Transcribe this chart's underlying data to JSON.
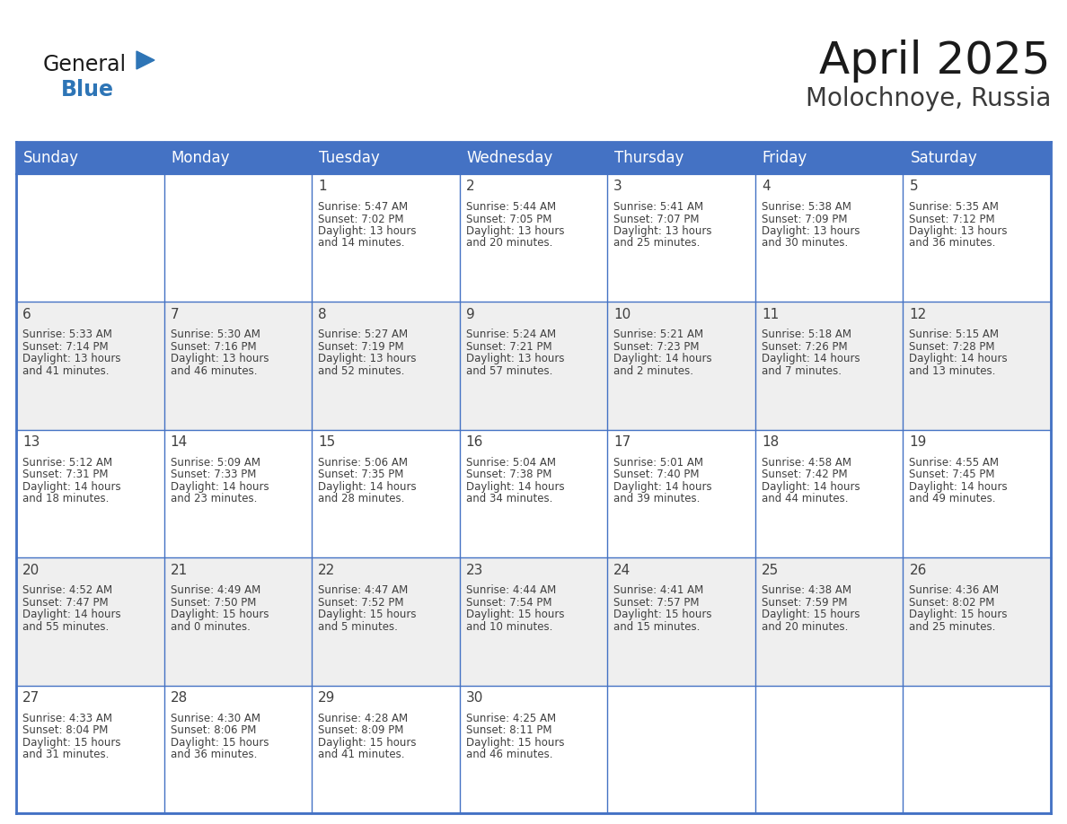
{
  "title": "April 2025",
  "subtitle": "Molochnoye, Russia",
  "header_bg_color": "#4472C4",
  "header_text_color": "#FFFFFF",
  "border_color": "#4472C4",
  "text_color": "#404040",
  "day_headers": [
    "Sunday",
    "Monday",
    "Tuesday",
    "Wednesday",
    "Thursday",
    "Friday",
    "Saturday"
  ],
  "title_fontsize": 36,
  "subtitle_fontsize": 20,
  "header_fontsize": 12,
  "day_num_fontsize": 11,
  "cell_text_fontsize": 8.5,
  "weeks": [
    [
      {
        "day": 0,
        "data": null
      },
      {
        "day": 0,
        "data": null
      },
      {
        "day": 1,
        "data": {
          "sunrise": "5:47 AM",
          "sunset": "7:02 PM",
          "daylight": "13 hours",
          "daylight2": "and 14 minutes."
        }
      },
      {
        "day": 2,
        "data": {
          "sunrise": "5:44 AM",
          "sunset": "7:05 PM",
          "daylight": "13 hours",
          "daylight2": "and 20 minutes."
        }
      },
      {
        "day": 3,
        "data": {
          "sunrise": "5:41 AM",
          "sunset": "7:07 PM",
          "daylight": "13 hours",
          "daylight2": "and 25 minutes."
        }
      },
      {
        "day": 4,
        "data": {
          "sunrise": "5:38 AM",
          "sunset": "7:09 PM",
          "daylight": "13 hours",
          "daylight2": "and 30 minutes."
        }
      },
      {
        "day": 5,
        "data": {
          "sunrise": "5:35 AM",
          "sunset": "7:12 PM",
          "daylight": "13 hours",
          "daylight2": "and 36 minutes."
        }
      }
    ],
    [
      {
        "day": 6,
        "data": {
          "sunrise": "5:33 AM",
          "sunset": "7:14 PM",
          "daylight": "13 hours",
          "daylight2": "and 41 minutes."
        }
      },
      {
        "day": 7,
        "data": {
          "sunrise": "5:30 AM",
          "sunset": "7:16 PM",
          "daylight": "13 hours",
          "daylight2": "and 46 minutes."
        }
      },
      {
        "day": 8,
        "data": {
          "sunrise": "5:27 AM",
          "sunset": "7:19 PM",
          "daylight": "13 hours",
          "daylight2": "and 52 minutes."
        }
      },
      {
        "day": 9,
        "data": {
          "sunrise": "5:24 AM",
          "sunset": "7:21 PM",
          "daylight": "13 hours",
          "daylight2": "and 57 minutes."
        }
      },
      {
        "day": 10,
        "data": {
          "sunrise": "5:21 AM",
          "sunset": "7:23 PM",
          "daylight": "14 hours",
          "daylight2": "and 2 minutes."
        }
      },
      {
        "day": 11,
        "data": {
          "sunrise": "5:18 AM",
          "sunset": "7:26 PM",
          "daylight": "14 hours",
          "daylight2": "and 7 minutes."
        }
      },
      {
        "day": 12,
        "data": {
          "sunrise": "5:15 AM",
          "sunset": "7:28 PM",
          "daylight": "14 hours",
          "daylight2": "and 13 minutes."
        }
      }
    ],
    [
      {
        "day": 13,
        "data": {
          "sunrise": "5:12 AM",
          "sunset": "7:31 PM",
          "daylight": "14 hours",
          "daylight2": "and 18 minutes."
        }
      },
      {
        "day": 14,
        "data": {
          "sunrise": "5:09 AM",
          "sunset": "7:33 PM",
          "daylight": "14 hours",
          "daylight2": "and 23 minutes."
        }
      },
      {
        "day": 15,
        "data": {
          "sunrise": "5:06 AM",
          "sunset": "7:35 PM",
          "daylight": "14 hours",
          "daylight2": "and 28 minutes."
        }
      },
      {
        "day": 16,
        "data": {
          "sunrise": "5:04 AM",
          "sunset": "7:38 PM",
          "daylight": "14 hours",
          "daylight2": "and 34 minutes."
        }
      },
      {
        "day": 17,
        "data": {
          "sunrise": "5:01 AM",
          "sunset": "7:40 PM",
          "daylight": "14 hours",
          "daylight2": "and 39 minutes."
        }
      },
      {
        "day": 18,
        "data": {
          "sunrise": "4:58 AM",
          "sunset": "7:42 PM",
          "daylight": "14 hours",
          "daylight2": "and 44 minutes."
        }
      },
      {
        "day": 19,
        "data": {
          "sunrise": "4:55 AM",
          "sunset": "7:45 PM",
          "daylight": "14 hours",
          "daylight2": "and 49 minutes."
        }
      }
    ],
    [
      {
        "day": 20,
        "data": {
          "sunrise": "4:52 AM",
          "sunset": "7:47 PM",
          "daylight": "14 hours",
          "daylight2": "and 55 minutes."
        }
      },
      {
        "day": 21,
        "data": {
          "sunrise": "4:49 AM",
          "sunset": "7:50 PM",
          "daylight": "15 hours",
          "daylight2": "and 0 minutes."
        }
      },
      {
        "day": 22,
        "data": {
          "sunrise": "4:47 AM",
          "sunset": "7:52 PM",
          "daylight": "15 hours",
          "daylight2": "and 5 minutes."
        }
      },
      {
        "day": 23,
        "data": {
          "sunrise": "4:44 AM",
          "sunset": "7:54 PM",
          "daylight": "15 hours",
          "daylight2": "and 10 minutes."
        }
      },
      {
        "day": 24,
        "data": {
          "sunrise": "4:41 AM",
          "sunset": "7:57 PM",
          "daylight": "15 hours",
          "daylight2": "and 15 minutes."
        }
      },
      {
        "day": 25,
        "data": {
          "sunrise": "4:38 AM",
          "sunset": "7:59 PM",
          "daylight": "15 hours",
          "daylight2": "and 20 minutes."
        }
      },
      {
        "day": 26,
        "data": {
          "sunrise": "4:36 AM",
          "sunset": "8:02 PM",
          "daylight": "15 hours",
          "daylight2": "and 25 minutes."
        }
      }
    ],
    [
      {
        "day": 27,
        "data": {
          "sunrise": "4:33 AM",
          "sunset": "8:04 PM",
          "daylight": "15 hours",
          "daylight2": "and 31 minutes."
        }
      },
      {
        "day": 28,
        "data": {
          "sunrise": "4:30 AM",
          "sunset": "8:06 PM",
          "daylight": "15 hours",
          "daylight2": "and 36 minutes."
        }
      },
      {
        "day": 29,
        "data": {
          "sunrise": "4:28 AM",
          "sunset": "8:09 PM",
          "daylight": "15 hours",
          "daylight2": "and 41 minutes."
        }
      },
      {
        "day": 30,
        "data": {
          "sunrise": "4:25 AM",
          "sunset": "8:11 PM",
          "daylight": "15 hours",
          "daylight2": "and 46 minutes."
        }
      },
      {
        "day": 0,
        "data": null
      },
      {
        "day": 0,
        "data": null
      },
      {
        "day": 0,
        "data": null
      }
    ]
  ],
  "logo_triangle_color": "#2E75B6",
  "logo_blue_color": "#2E75B6",
  "logo_general_color": "#1a1a1a"
}
